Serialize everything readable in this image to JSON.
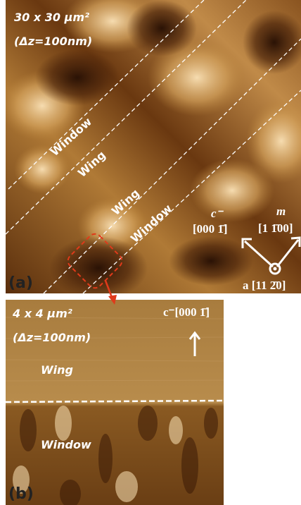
{
  "panels": {
    "a": {
      "scale": "30 x 30 µm²",
      "delta_z": "(Δz=100nm)",
      "tag": "(a)",
      "regions": [
        "Window",
        "Wing",
        "Wing",
        "Window"
      ],
      "c_axis": {
        "symbol": "c⁻",
        "index": "[000 1̄]"
      },
      "m_axis": {
        "symbol": "m",
        "index": "[1 1̄00]"
      },
      "a_axis": "a [11 2̄0]"
    },
    "b": {
      "scale": "4 x 4 µm²",
      "delta_z": "(Δz=100nm)",
      "tag": "(b)",
      "direction": "c⁻[000 1̄]",
      "regions": [
        "Wing",
        "Window"
      ]
    }
  }
}
